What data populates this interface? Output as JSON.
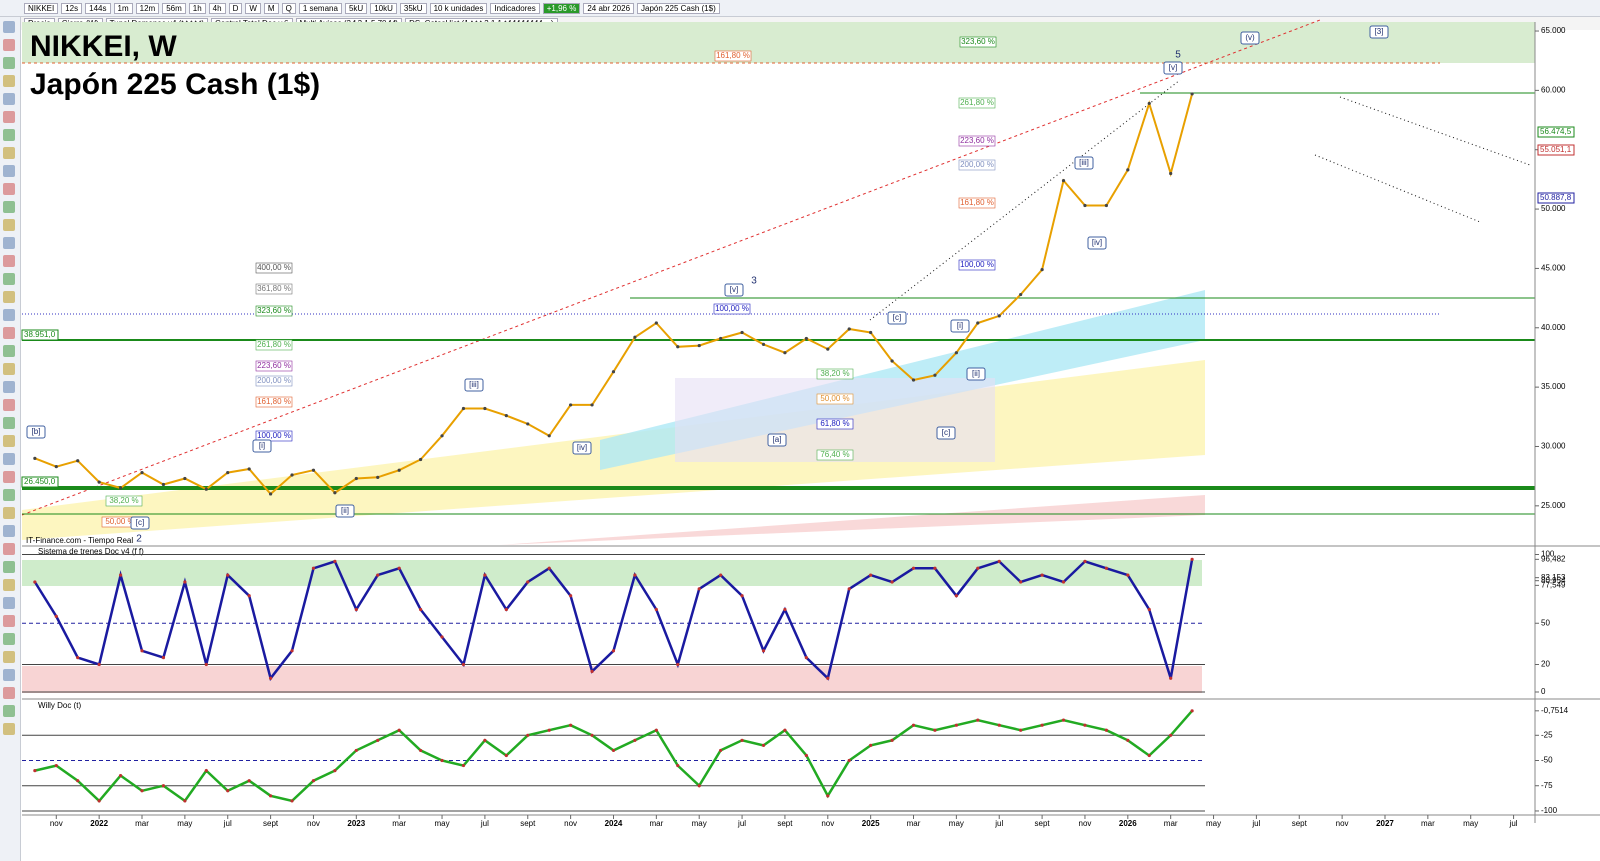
{
  "toolbar": {
    "row1": [
      "NIKKEI",
      "12s",
      "144s",
      "1m",
      "12m",
      "56m",
      "1h",
      "4h",
      "D",
      "W",
      "M",
      "Q",
      "1 semana",
      "5kU",
      "10kU",
      "35kU",
      "10 k unidades",
      "Indicadores",
      "+1,96 %",
      "24 abr 2026",
      "Japón 225 Cash (1$)"
    ],
    "row2": [
      "Precio",
      "Cierre (W)",
      "Tunel Domenec v4 (t t t t t)",
      "Control Total Doc v.6",
      "Multi Avisos (3 f 3 1,5 70 f f)",
      "DS_CotasHist (1 t t t 3 1 1 t f f f f f f f f ...)"
    ]
  },
  "source": "IT-Finance.com - Tiempo Real",
  "chart_data": [
    {
      "type": "line",
      "title": "NIKKEI, W",
      "subtitle": "Japón 225 Cash (1$)",
      "color": "#e8a000",
      "x": [
        -3,
        -2,
        -1,
        0,
        1,
        2,
        3,
        4,
        5,
        6,
        7,
        8,
        9,
        10,
        11,
        12,
        13,
        14,
        15,
        16,
        17,
        18,
        19,
        20,
        21,
        22,
        23,
        24,
        25,
        26,
        27,
        28,
        29,
        30,
        31,
        32,
        33,
        34,
        35,
        36,
        37,
        38,
        39,
        40,
        41,
        42,
        43,
        44,
        45,
        46,
        47,
        48,
        49,
        50,
        51
      ],
      "values": [
        29000,
        28300,
        28800,
        27000,
        26500,
        27800,
        26800,
        27300,
        26400,
        27800,
        28100,
        26000,
        27600,
        28000,
        26100,
        27300,
        27400,
        28000,
        28900,
        30900,
        33200,
        33200,
        32600,
        31900,
        30900,
        33500,
        33500,
        36300,
        39200,
        40400,
        38400,
        38500,
        39100,
        39600,
        38600,
        37900,
        39100,
        38200,
        39900,
        39600,
        37200,
        35600,
        36000,
        37900,
        40400,
        41000,
        42800,
        44900,
        52400,
        50300,
        50300,
        53300,
        58900,
        53000,
        59700
      ],
      "xlim": [
        -3.6,
        67
      ],
      "ylim": [
        21700,
        65760
      ],
      "yticks": [
        {
          "value": 25000,
          "label": "25.000"
        },
        {
          "value": 30000,
          "label": "30.000"
        },
        {
          "value": 35000,
          "label": "35.000"
        },
        {
          "value": 40000,
          "label": "40.000"
        },
        {
          "value": 45000,
          "label": "45.000"
        },
        {
          "value": 50000,
          "label": "50.000"
        },
        {
          "value": 55000,
          "label": "55.000"
        },
        {
          "value": 60000,
          "label": "60.000"
        },
        {
          "value": 65000,
          "label": "65.000"
        }
      ],
      "price_tags": [
        "38.951,0",
        "26.450,0",
        "56.474,5",
        "55.051,1",
        "50.887,8"
      ],
      "fib_labels": [
        "323,60 %",
        "161,80 %",
        "261,80 %",
        "223,60 %",
        "200,00 %",
        "161,80 %",
        "100,00 %",
        "400,00 %",
        "361,80 %",
        "323,60 %",
        "100,00 %",
        "261,80 %",
        "223,60 %",
        "200,00 %",
        "161,80 %",
        "100,00 %",
        "38,20 %",
        "50,00 %",
        "61,80 %",
        "76,40 %",
        "38,20 %",
        "50,00 %"
      ],
      "wave_labels": [
        "[3]",
        "(v)",
        "5",
        "[v]",
        "[iii]",
        "[iv]",
        "[c]",
        "[i]",
        "[ii]",
        "[c]",
        "[a]",
        "3",
        "[v]",
        "[iii]",
        "[iv]",
        "[ii]",
        "[i]",
        "[b]",
        "[c]",
        "2"
      ]
    },
    {
      "type": "line",
      "title": "Sistema de trenes Doc v4 (f f)",
      "color": "#1a1aa0",
      "x": [
        -3,
        -2,
        -1,
        0,
        1,
        2,
        3,
        4,
        5,
        6,
        7,
        8,
        9,
        10,
        11,
        12,
        13,
        14,
        15,
        16,
        17,
        18,
        19,
        20,
        21,
        22,
        23,
        24,
        25,
        26,
        27,
        28,
        29,
        30,
        31,
        32,
        33,
        34,
        35,
        36,
        37,
        38,
        39,
        40,
        41,
        42,
        43,
        44,
        45,
        46,
        47,
        48,
        49,
        50,
        51
      ],
      "values": [
        80,
        55,
        25,
        20,
        85,
        30,
        25,
        80,
        20,
        85,
        70,
        10,
        30,
        90,
        95,
        60,
        85,
        90,
        60,
        40,
        20,
        85,
        60,
        80,
        90,
        70,
        15,
        30,
        85,
        60,
        20,
        75,
        85,
        70,
        30,
        60,
        25,
        10,
        75,
        85,
        80,
        90,
        90,
        70,
        90,
        95,
        80,
        85,
        80,
        95,
        90,
        85,
        60,
        10,
        96.482
      ],
      "xlim": [
        -3.6,
        67
      ],
      "ylim": [
        0,
        104
      ],
      "yticks": [
        100,
        {
          "value": 96.482,
          "label": "96,482"
        },
        {
          "value": 83.153,
          "label": "83,153"
        },
        {
          "value": 80.954,
          "label": "80,954"
        },
        {
          "value": 77.549,
          "label": "77,549"
        },
        50,
        20,
        0
      ]
    },
    {
      "type": "line",
      "title": "Willy Doc (t)",
      "color": "#22aa22",
      "x": [
        -3,
        -2,
        -1,
        0,
        1,
        2,
        3,
        4,
        5,
        6,
        7,
        8,
        9,
        10,
        11,
        12,
        13,
        14,
        15,
        16,
        17,
        18,
        19,
        20,
        21,
        22,
        23,
        24,
        25,
        26,
        27,
        28,
        29,
        30,
        31,
        32,
        33,
        34,
        35,
        36,
        37,
        38,
        39,
        40,
        41,
        42,
        43,
        44,
        45,
        46,
        47,
        48,
        49,
        50,
        51
      ],
      "values": [
        -60,
        -55,
        -70,
        -90,
        -65,
        -80,
        -75,
        -90,
        -60,
        -80,
        -70,
        -85,
        -90,
        -70,
        -60,
        -40,
        -30,
        -20,
        -40,
        -50,
        -55,
        -30,
        -45,
        -25,
        -20,
        -15,
        -25,
        -40,
        -30,
        -20,
        -55,
        -75,
        -40,
        -30,
        -35,
        -20,
        -45,
        -85,
        -50,
        -35,
        -30,
        -15,
        -20,
        -15,
        -10,
        -15,
        -20,
        -15,
        -10,
        -15,
        -20,
        -30,
        -45,
        -25,
        -0.7514
      ],
      "xlim": [
        -3.6,
        67
      ],
      "ylim": [
        -104,
        7
      ],
      "yticks": [
        {
          "value": -0.7514,
          "label": "-0,7514"
        },
        -25,
        -50,
        -75,
        -100
      ],
      "xticks": [
        {
          "value": -2,
          "label": "nov"
        },
        {
          "value": 0,
          "label": "2022"
        },
        {
          "value": 2,
          "label": "mar"
        },
        {
          "value": 4,
          "label": "may"
        },
        {
          "value": 6,
          "label": "jul"
        },
        {
          "value": 8,
          "label": "sept"
        },
        {
          "value": 10,
          "label": "nov"
        },
        {
          "value": 12,
          "label": "2023"
        },
        {
          "value": 14,
          "label": "mar"
        },
        {
          "value": 16,
          "label": "may"
        },
        {
          "value": 18,
          "label": "jul"
        },
        {
          "value": 20,
          "label": "sept"
        },
        {
          "value": 22,
          "label": "nov"
        },
        {
          "value": 24,
          "label": "2024"
        },
        {
          "value": 26,
          "label": "mar"
        },
        {
          "value": 28,
          "label": "may"
        },
        {
          "value": 30,
          "label": "jul"
        },
        {
          "value": 32,
          "label": "sept"
        },
        {
          "value": 34,
          "label": "nov"
        },
        {
          "value": 36,
          "label": "2025"
        },
        {
          "value": 38,
          "label": "mar"
        },
        {
          "value": 40,
          "label": "may"
        },
        {
          "value": 42,
          "label": "jul"
        },
        {
          "value": 44,
          "label": "sept"
        },
        {
          "value": 46,
          "label": "nov"
        },
        {
          "value": 48,
          "label": "2026"
        },
        {
          "value": 50,
          "label": "mar"
        },
        {
          "value": 52,
          "label": "may"
        },
        {
          "value": 54,
          "label": "jul"
        },
        {
          "value": 56,
          "label": "sept"
        },
        {
          "value": 58,
          "label": "nov"
        },
        {
          "value": 60,
          "label": "2027"
        },
        {
          "value": 62,
          "label": "mar"
        },
        {
          "value": 64,
          "label": "may"
        },
        {
          "value": 66,
          "label": "jul"
        }
      ]
    }
  ]
}
